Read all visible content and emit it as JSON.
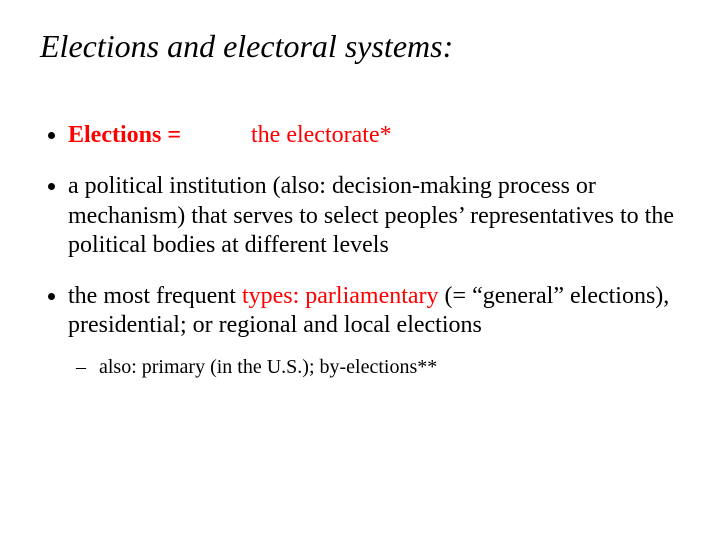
{
  "background_color": "#ffffff",
  "text_color": "#000000",
  "accent_color": "#ff0000",
  "font_family": "Times New Roman",
  "title": {
    "text": "Elections and electoral systems:",
    "fontsize": 32,
    "italic": true
  },
  "bullets": [
    {
      "segments": {
        "left": "Elections =",
        "right": "the electorate*"
      },
      "style": {
        "left_bold": true,
        "left_color": "#ff0000",
        "right_color": "#ff0000",
        "fontsize": 24
      }
    },
    {
      "text": "a political institution (also: decision-making process or mechanism) that serves to select peoples’ representatives to the political bodies at different levels",
      "style": {
        "fontsize": 24
      }
    },
    {
      "segments": {
        "pre": "the most frequent ",
        "em": "types: parliamentary",
        "post": " (= “general” elections), presidential; or regional and local elections"
      },
      "style": {
        "em_color": "#ff0000",
        "fontsize": 24
      },
      "sub": [
        {
          "text": "also: primary (in the U.S.); by-elections**",
          "style": {
            "fontsize": 20
          }
        }
      ]
    }
  ]
}
